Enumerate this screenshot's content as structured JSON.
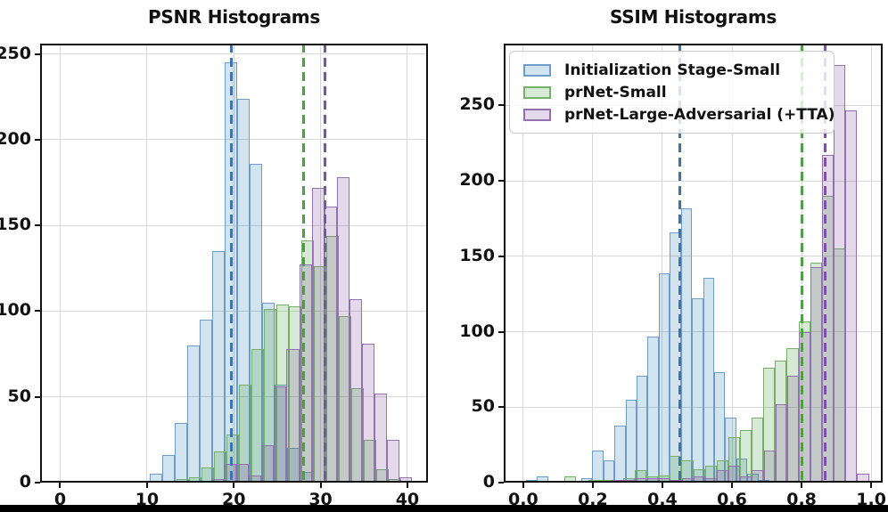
{
  "figure": {
    "background": "#ffffff",
    "bottom_bar_color": "#000000",
    "grid_color": "#d8d8d8",
    "spine_color": "#111111",
    "text_color": "#111111"
  },
  "legend": {
    "position": "upper-left-of-ssim-plot",
    "items": [
      "Initialization Stage-Small",
      "prNet-Small",
      "prNet-Large-Adversarial (+TTA)"
    ]
  },
  "chart_data": [
    {
      "type": "bar",
      "subtype": "overlapping-histograms",
      "title": "PSNR Histograms",
      "xlabel": "",
      "ylabel": "",
      "xlim": [
        -2.31,
        42.37
      ],
      "ylim": [
        0,
        256
      ],
      "grid": true,
      "show_legend": false,
      "xticks": {
        "values": [
          0,
          10,
          20,
          30,
          40
        ],
        "labels": [
          "0",
          "10",
          "20",
          "30",
          "40"
        ]
      },
      "yticks": {
        "values": [
          0,
          50,
          100,
          150,
          200,
          250
        ],
        "labels": [
          "0",
          "50",
          "100",
          "150",
          "200",
          "250"
        ]
      },
      "series": [
        {
          "name": "Initialization Stage-Small",
          "bin_start": 8.85,
          "bin_width": 1.44,
          "counts": [
            1,
            5,
            16,
            35,
            80,
            95,
            135,
            245,
            224,
            186,
            105,
            57,
            20,
            6
          ],
          "mean": 19.7,
          "fill": "rgba(31,119,180,0.20)",
          "edge": "#6f9cca",
          "mean_color": "#3d73b4"
        },
        {
          "name": "prNet-Small",
          "bin_start": 13.4,
          "bin_width": 1.44,
          "counts": [
            2,
            3,
            9,
            18,
            28,
            57,
            78,
            101,
            104,
            103,
            141,
            126,
            144,
            97,
            55,
            25,
            8,
            2
          ],
          "mean": 28.0,
          "fill": "rgba(56,150,45,0.20)",
          "edge": "#76af68",
          "mean_color": "#4da043"
        },
        {
          "name": "prNet-Large-Adversarial (+TTA)",
          "bin_start": 17.45,
          "bin_width": 1.44,
          "counts": [
            2,
            11,
            11,
            4,
            22,
            56,
            78,
            127,
            172,
            161,
            178,
            107,
            81,
            52,
            25,
            3
          ],
          "mean": 30.5,
          "fill": "rgba(127,82,160,0.22)",
          "edge": "#9471ae",
          "mean_color": "#7d54a4"
        }
      ]
    },
    {
      "type": "bar",
      "subtype": "overlapping-histograms",
      "title": "SSIM Histograms",
      "xlabel": "",
      "ylabel": "",
      "xlim": [
        -0.056,
        1.033
      ],
      "ylim": [
        0,
        291
      ],
      "grid": true,
      "show_legend": true,
      "xticks": {
        "values": [
          0,
          0.2,
          0.4,
          0.6,
          0.8,
          1.0
        ],
        "labels": [
          "0.0",
          "0.2",
          "0.4",
          "0.6",
          "0.8",
          "1.0"
        ]
      },
      "yticks": {
        "values": [
          0,
          50,
          100,
          150,
          200,
          250
        ],
        "labels": [
          "0",
          "50",
          "100",
          "150",
          "200",
          "250"
        ]
      },
      "series": [
        {
          "name": "Initialization Stage-Small",
          "bin_start": 0.008,
          "bin_width": 0.0318,
          "counts": [
            2,
            4,
            0,
            0,
            0,
            3,
            21,
            15,
            38,
            55,
            71,
            97,
            139,
            166,
            182,
            122,
            136,
            73,
            43,
            16,
            6,
            2
          ],
          "mean": 0.45,
          "fill": "rgba(31,119,180,0.20)",
          "edge": "#6f9cca",
          "mean_color": "#3d73b4"
        },
        {
          "name": "prNet-Small",
          "bin_start": 0.119,
          "bin_width": 0.0336,
          "counts": [
            4,
            1,
            2,
            2,
            2,
            3,
            8,
            4,
            5,
            18,
            15,
            9,
            11,
            15,
            30,
            35,
            43,
            76,
            81,
            89,
            107,
            146,
            190,
            155
          ],
          "mean": 0.8,
          "fill": "rgba(56,150,45,0.20)",
          "edge": "#76af68",
          "mean_color": "#4da043"
        },
        {
          "name": "prNet-Large-Adversarial (+TTA)",
          "bin_start": 0.187,
          "bin_width": 0.0336,
          "counts": [
            1,
            1,
            2,
            2,
            3,
            3,
            3,
            2,
            3,
            4,
            3,
            8,
            11,
            4,
            8,
            21,
            52,
            71,
            100,
            143,
            217,
            277,
            247,
            6
          ],
          "mean": 0.868,
          "fill": "rgba(127,82,160,0.22)",
          "edge": "#9471ae",
          "mean_color": "#7d54a4"
        }
      ]
    }
  ]
}
